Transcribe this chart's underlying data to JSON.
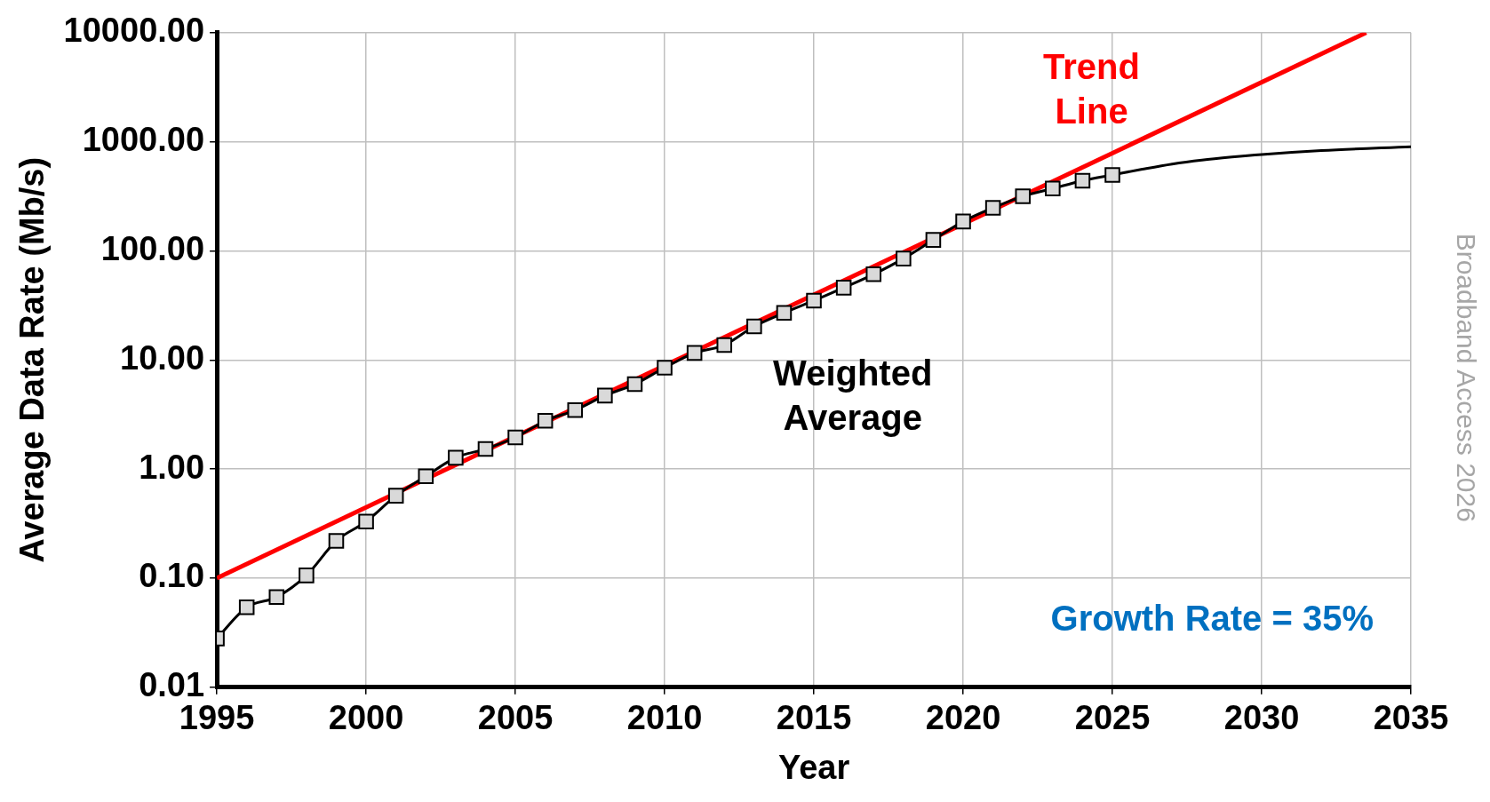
{
  "chart_data": {
    "type": "line",
    "xlabel": "Year",
    "ylabel": "Average Data Rate (Mb/s)",
    "log": "y",
    "grid": true,
    "legend": false,
    "xlim": [
      1995,
      2035
    ],
    "xticks": [
      1995,
      2000,
      2005,
      2010,
      2015,
      2020,
      2025,
      2030,
      2035
    ],
    "ylim": [
      0.01,
      10000
    ],
    "yticks": [
      {
        "value": 0.01,
        "label": "0.01"
      },
      {
        "value": 0.1,
        "label": "0.10"
      },
      {
        "value": 1,
        "label": "1.00"
      },
      {
        "value": 10,
        "label": "10.00"
      },
      {
        "value": 100,
        "label": "100.00"
      },
      {
        "value": 1000,
        "label": "1000.00"
      },
      {
        "value": 10000,
        "label": "10000.00"
      }
    ],
    "series": [
      {
        "name": "Trend Line",
        "color": "#ff0000",
        "x": [
          1995,
          2033.5
        ],
        "values": [
          0.1,
          10000
        ],
        "marker": "none"
      },
      {
        "color": "#000000",
        "x": [
          2025,
          2026,
          2027,
          2028,
          2029,
          2030,
          2032,
          2035
        ],
        "values": [
          497,
          560,
          625,
          680,
          725,
          765,
          830,
          900
        ],
        "marker": "none"
      },
      {
        "name": "Weighted Average",
        "color": "#000000",
        "marker": "square",
        "x": [
          1995,
          1996,
          1997,
          1998,
          1999,
          2000,
          2001,
          2002,
          2003,
          2004,
          2005,
          2006,
          2007,
          2008,
          2009,
          2010,
          2011,
          2012,
          2013,
          2014,
          2015,
          2016,
          2017,
          2018,
          2019,
          2020,
          2021,
          2022,
          2023,
          2024,
          2025
        ],
        "values": [
          0.028,
          0.054,
          0.067,
          0.106,
          0.22,
          0.33,
          0.57,
          0.86,
          1.27,
          1.53,
          1.95,
          2.77,
          3.47,
          4.72,
          6.0,
          8.5,
          11.6,
          13.7,
          20.3,
          27,
          35,
          46,
          61,
          85,
          126,
          186,
          248,
          316,
          373,
          440,
          497
        ]
      }
    ],
    "annotations": [
      "Growth Rate = 35%",
      "Broadband Access 2026"
    ]
  }
}
